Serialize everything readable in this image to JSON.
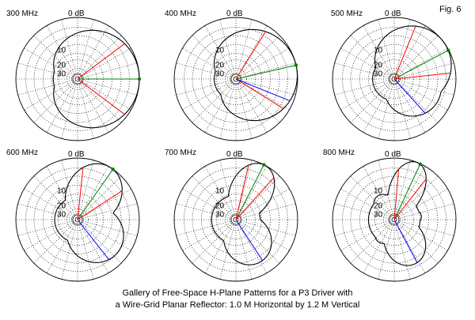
{
  "figure_label": "Fig. 6",
  "caption": {
    "line1": "Gallery of Free-Space H-Plane Patterns for a P3 Driver with",
    "line2": "a Wire-Grid Planar Reflector: 1.0 M Horizontal by 1.2 M Vertical"
  },
  "ring_labels": {
    "zero": "0 dB",
    "ten": "10",
    "twenty": "20",
    "thirty": "30"
  },
  "colors": {
    "grid": "#000000",
    "pattern": "#000000",
    "green": "#008000",
    "red": "#ff0000",
    "blue": "#0000ff"
  },
  "panels": [
    {
      "title": "300 MHz",
      "lobes": [
        {
          "direction_deg": 0,
          "gain_db": 0,
          "half_beamwidth_deg": 70
        }
      ],
      "back_db": -16,
      "green_deg": 0,
      "red_deg": [
        37,
        -37
      ],
      "blue_deg": null
    },
    {
      "title": "400 MHz",
      "lobes": [
        {
          "direction_deg": 13,
          "gain_db": 0,
          "half_beamwidth_deg": 60
        }
      ],
      "back_db": -18,
      "green_deg": 13,
      "red_deg": [
        58,
        -32
      ],
      "blue_deg": -22
    },
    {
      "title": "500 MHz",
      "lobes": [
        {
          "direction_deg": 38,
          "gain_db": 0,
          "half_beamwidth_deg": 45
        },
        {
          "direction_deg": -25,
          "gain_db": -4,
          "half_beamwidth_deg": 40
        }
      ],
      "back_db": -18,
      "green_deg": 28,
      "red_deg": [
        68,
        6
      ],
      "blue_deg": -48
    },
    {
      "title": "600 MHz",
      "lobes": [
        {
          "direction_deg": 58,
          "gain_db": 0,
          "half_beamwidth_deg": 27
        },
        {
          "direction_deg": -40,
          "gain_db": -3,
          "half_beamwidth_deg": 35
        }
      ],
      "back_db": -17,
      "green_deg": 55,
      "red_deg": [
        84,
        33
      ],
      "blue_deg": -52
    },
    {
      "title": "700 MHz",
      "lobes": [
        {
          "direction_deg": 62,
          "gain_db": 0,
          "half_beamwidth_deg": 20
        },
        {
          "direction_deg": -60,
          "gain_db": -4,
          "half_beamwidth_deg": 30
        },
        {
          "direction_deg": -10,
          "gain_db": -20,
          "half_beamwidth_deg": 20
        },
        {
          "direction_deg": 130,
          "gain_db": -18,
          "half_beamwidth_deg": 25
        }
      ],
      "back_db": -16,
      "green_deg": 63,
      "red_deg": [
        77,
        48
      ],
      "blue_deg": -57
    },
    {
      "title": "800 MHz",
      "lobes": [
        {
          "direction_deg": 68,
          "gain_db": 0,
          "half_beamwidth_deg": 16
        },
        {
          "direction_deg": -65,
          "gain_db": -4,
          "half_beamwidth_deg": 25
        },
        {
          "direction_deg": 8,
          "gain_db": -14,
          "half_beamwidth_deg": 20
        },
        {
          "direction_deg": 125,
          "gain_db": -13,
          "half_beamwidth_deg": 22
        },
        {
          "direction_deg": -125,
          "gain_db": -14,
          "half_beamwidth_deg": 22
        }
      ],
      "back_db": -15,
      "green_deg": 65,
      "red_deg": [
        85,
        52
      ],
      "blue_deg": -62
    }
  ]
}
